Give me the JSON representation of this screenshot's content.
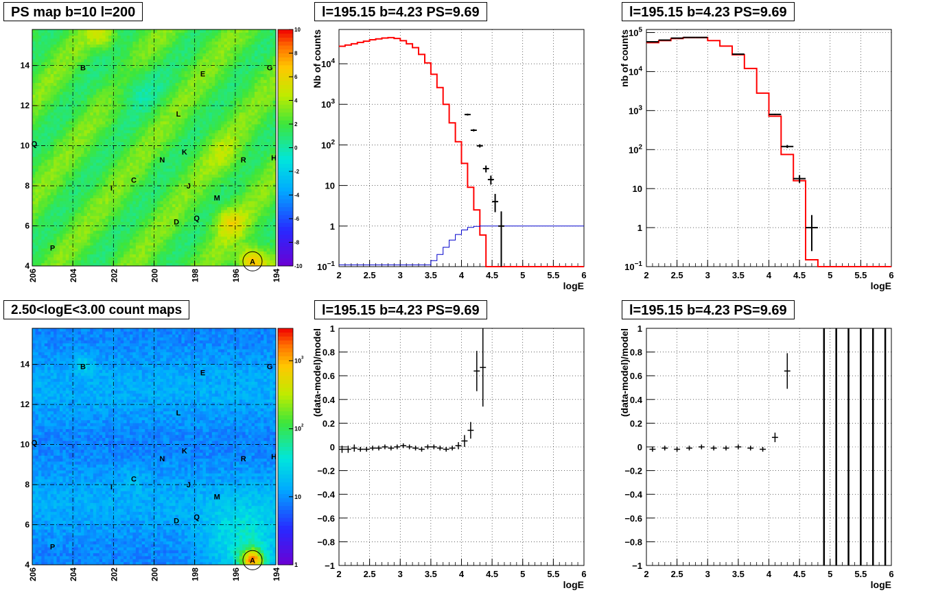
{
  "panel_titles": {
    "ps_map": "PS map b=10 l=200",
    "spec_lin": "l=195.15 b=4.23 PS=9.69",
    "spec_log": "l=195.15 b=4.23 PS=9.69",
    "count_map": "2.50<logE<3.00 count maps",
    "resid_lin": "l=195.15 b=4.23 PS=9.69",
    "resid_log": "l=195.15 b=4.23 PS=9.69"
  },
  "colors": {
    "model": "#ff0000",
    "data": "#000000",
    "acceptance": "#0000cc",
    "grid": "#000000"
  },
  "chart_data": [
    {
      "type": "heatmap",
      "id": "ps_map",
      "title": "PS map b=10 l=200",
      "xlim": [
        206,
        194
      ],
      "ylim": [
        4,
        15.8
      ],
      "x_ticks": [
        "206",
        "204",
        "202",
        "200",
        "198",
        "196",
        "194"
      ],
      "y_ticks": [
        "4",
        "6",
        "8",
        "10",
        "12",
        "14"
      ],
      "colorbar": {
        "min": -10,
        "max": 10,
        "ticks": [
          "-10",
          "-8",
          "-6",
          "-4",
          "-2",
          "0",
          "2",
          "4",
          "6",
          "8",
          "10"
        ]
      },
      "grid": true,
      "sources": [
        {
          "label": "A",
          "l": 195.15,
          "b": 4.23,
          "circled": true
        },
        {
          "label": "B",
          "l": 203.5,
          "b": 13.9
        },
        {
          "label": "C",
          "l": 201.0,
          "b": 8.3
        },
        {
          "label": "D",
          "l": 198.9,
          "b": 6.2
        },
        {
          "label": "E",
          "l": 197.6,
          "b": 13.6
        },
        {
          "label": "G",
          "l": 194.3,
          "b": 13.9
        },
        {
          "label": "H",
          "l": 194.1,
          "b": 9.4
        },
        {
          "label": "I",
          "l": 202.1,
          "b": 7.9
        },
        {
          "label": "J",
          "l": 198.3,
          "b": 8.0
        },
        {
          "label": "K",
          "l": 198.5,
          "b": 9.7
        },
        {
          "label": "L",
          "l": 198.8,
          "b": 11.6
        },
        {
          "label": "M",
          "l": 196.9,
          "b": 7.4
        },
        {
          "label": "N",
          "l": 199.6,
          "b": 9.3
        },
        {
          "label": "P",
          "l": 205.0,
          "b": 4.9
        },
        {
          "label": "Q",
          "l": 205.9,
          "b": 10.1
        },
        {
          "label": "Q",
          "l": 197.9,
          "b": 6.4
        },
        {
          "label": "R",
          "l": 195.6,
          "b": 9.3
        }
      ]
    },
    {
      "type": "line",
      "id": "spec_lin",
      "title": "l=195.15 b=4.23 PS=9.69",
      "xlabel": "logE",
      "ylabel": "Nb of counts",
      "xlim": [
        2,
        6
      ],
      "ylim": [
        0.1,
        70000
      ],
      "yscale": "log",
      "x_ticks": [
        "2",
        "2.5",
        "3",
        "3.5",
        "4",
        "4.5",
        "5",
        "5.5",
        "6"
      ],
      "y_ticks": [
        {
          "v": 0.1,
          "label": "10",
          "sup": "−1"
        },
        {
          "v": 1,
          "label": "1"
        },
        {
          "v": 10,
          "label": "10"
        },
        {
          "v": 100,
          "label": "10",
          "sup": "2"
        },
        {
          "v": 1000,
          "label": "10",
          "sup": "3"
        },
        {
          "v": 10000,
          "label": "10",
          "sup": "4"
        }
      ],
      "grid": true,
      "bin_edges": [
        2.0,
        2.1,
        2.2,
        2.3,
        2.4,
        2.5,
        2.6,
        2.7,
        2.8,
        2.9,
        3.0,
        3.1,
        3.2,
        3.3,
        3.4,
        3.5,
        3.6,
        3.7,
        3.8,
        3.9,
        4.0,
        4.1,
        4.2,
        4.3,
        4.4,
        4.5,
        4.6,
        4.7,
        4.8,
        4.9,
        5.0,
        5.1,
        5.2,
        5.3,
        5.4,
        5.5,
        5.6,
        5.7,
        5.8,
        5.9,
        6.0
      ],
      "series": [
        {
          "role": "model",
          "style": "step",
          "values": [
            27000,
            29000,
            31000,
            33500,
            36000,
            39000,
            41000,
            43000,
            44000,
            42000,
            37000,
            31000,
            25000,
            17000,
            10500,
            5500,
            2600,
            1000,
            350,
            120,
            35,
            9,
            2.5,
            0.6,
            0.1,
            0.1,
            0.1,
            0.1,
            0.1,
            0.1,
            0.1,
            0.1,
            0.1,
            0.1,
            0.1,
            0.1,
            0.1,
            0.1,
            0.1,
            0.1
          ]
        },
        {
          "role": "acceptance",
          "style": "step",
          "values": [
            0.11,
            0.11,
            0.11,
            0.11,
            0.11,
            0.11,
            0.11,
            0.11,
            0.11,
            0.11,
            0.11,
            0.11,
            0.11,
            0.11,
            0.11,
            0.14,
            0.2,
            0.3,
            0.45,
            0.62,
            0.8,
            0.93,
            0.98,
            1.0,
            1.0,
            1.0,
            1.0,
            1.0,
            1.0,
            1.0,
            1.0,
            1.0,
            1.0,
            1.0,
            1.0,
            1.0,
            1.0,
            1.0,
            1.0,
            1.0
          ]
        },
        {
          "role": "data",
          "style": "errorbar",
          "points": [
            {
              "x": 4.1,
              "y": 560,
              "xerr": 0.05,
              "ylo": 530,
              "yhi": 590
            },
            {
              "x": 4.2,
              "y": 230,
              "xerr": 0.05,
              "ylo": 215,
              "yhi": 245
            },
            {
              "x": 4.3,
              "y": 95,
              "xerr": 0.05,
              "ylo": 86,
              "yhi": 104
            },
            {
              "x": 4.4,
              "y": 26,
              "xerr": 0.05,
              "ylo": 21,
              "yhi": 31
            },
            {
              "x": 4.48,
              "y": 14,
              "xerr": 0.05,
              "ylo": 10.5,
              "yhi": 17.5
            },
            {
              "x": 4.55,
              "y": 4,
              "xerr": 0.05,
              "ylo": 2.2,
              "yhi": 6.2
            },
            {
              "x": 4.65,
              "y": 1,
              "xerr": 0.05,
              "ylo": 0.1,
              "yhi": 2.3
            }
          ]
        }
      ]
    },
    {
      "type": "line",
      "id": "spec_log",
      "title": "l=195.15 b=4.23 PS=9.69",
      "xlabel": "logE",
      "ylabel": "nb of counts",
      "xlim": [
        2,
        6
      ],
      "ylim": [
        0.1,
        120000
      ],
      "yscale": "log",
      "x_ticks": [
        "2",
        "2.5",
        "3",
        "3.5",
        "4",
        "4.5",
        "5",
        "5.5",
        "6"
      ],
      "y_ticks": [
        {
          "v": 0.1,
          "label": "10",
          "sup": "−1"
        },
        {
          "v": 1,
          "label": "1"
        },
        {
          "v": 10,
          "label": "10"
        },
        {
          "v": 100,
          "label": "10",
          "sup": "2"
        },
        {
          "v": 1000,
          "label": "10",
          "sup": "3"
        },
        {
          "v": 10000,
          "label": "10",
          "sup": "4"
        },
        {
          "v": 100000,
          "label": "10",
          "sup": "5"
        }
      ],
      "grid": true,
      "bin_edges": [
        2.0,
        2.2,
        2.4,
        2.6,
        2.8,
        3.0,
        3.2,
        3.4,
        3.6,
        3.8,
        4.0,
        4.2,
        4.4,
        4.6,
        4.8,
        5.0,
        5.2,
        5.4,
        5.6,
        5.8,
        6.0
      ],
      "series": [
        {
          "role": "model",
          "style": "step",
          "values": [
            55000,
            62000,
            70000,
            74000,
            74000,
            62000,
            45000,
            27000,
            12000,
            2800,
            720,
            75,
            16,
            0.15,
            0.1,
            0.1,
            0.1,
            0.1,
            0.1,
            0.1
          ]
        },
        {
          "role": "data",
          "style": "errorbar",
          "points": [
            {
              "x": 2.1,
              "y": 58000,
              "xerr": 0.1,
              "ylo": 56000,
              "yhi": 60000
            },
            {
              "x": 2.3,
              "y": 64000,
              "xerr": 0.1,
              "ylo": 62000,
              "yhi": 66000
            },
            {
              "x": 2.5,
              "y": 72000,
              "xerr": 0.1,
              "ylo": 70000,
              "yhi": 74000
            },
            {
              "x": 2.7,
              "y": 75000,
              "xerr": 0.1,
              "ylo": 73000,
              "yhi": 77000
            },
            {
              "x": 2.9,
              "y": 75000,
              "xerr": 0.1,
              "ylo": 73000,
              "yhi": 77000
            },
            {
              "x": 3.5,
              "y": 28000,
              "xerr": 0.1,
              "ylo": 27000,
              "yhi": 29000
            },
            {
              "x": 4.1,
              "y": 800,
              "xerr": 0.1,
              "ylo": 770,
              "yhi": 830
            },
            {
              "x": 4.3,
              "y": 120,
              "xerr": 0.1,
              "ylo": 110,
              "yhi": 131
            },
            {
              "x": 4.5,
              "y": 18,
              "xerr": 0.1,
              "ylo": 14,
              "yhi": 22
            },
            {
              "x": 4.7,
              "y": 1,
              "xerr": 0.1,
              "ylo": 0.25,
              "yhi": 2.1
            }
          ]
        }
      ]
    },
    {
      "type": "heatmap",
      "id": "count_map",
      "title": "2.50<logE<3.00 count maps",
      "xlim": [
        206,
        194
      ],
      "ylim": [
        4,
        15.8
      ],
      "x_ticks": [
        "206",
        "204",
        "202",
        "200",
        "198",
        "196",
        "194"
      ],
      "y_ticks": [
        "4",
        "6",
        "8",
        "10",
        "12",
        "14"
      ],
      "colorbar": {
        "scale": "log",
        "min": 1,
        "max": 3000,
        "ticks": [
          {
            "v": 1,
            "label": "1"
          },
          {
            "v": 10,
            "label": "10"
          },
          {
            "v": 100,
            "label": "10",
            "sup": "2"
          },
          {
            "v": 1000,
            "label": "10",
            "sup": "3"
          }
        ]
      },
      "grid": true,
      "sources": [
        {
          "label": "A",
          "l": 195.15,
          "b": 4.23,
          "circled": true
        },
        {
          "label": "B",
          "l": 203.5,
          "b": 13.9
        },
        {
          "label": "C",
          "l": 201.0,
          "b": 8.3
        },
        {
          "label": "D",
          "l": 198.9,
          "b": 6.2
        },
        {
          "label": "E",
          "l": 197.6,
          "b": 13.6
        },
        {
          "label": "G",
          "l": 194.3,
          "b": 13.9
        },
        {
          "label": "H",
          "l": 194.1,
          "b": 9.4
        },
        {
          "label": "I",
          "l": 202.1,
          "b": 7.9
        },
        {
          "label": "J",
          "l": 198.3,
          "b": 8.0
        },
        {
          "label": "K",
          "l": 198.5,
          "b": 9.7
        },
        {
          "label": "L",
          "l": 198.8,
          "b": 11.6
        },
        {
          "label": "M",
          "l": 196.9,
          "b": 7.4
        },
        {
          "label": "N",
          "l": 199.6,
          "b": 9.3
        },
        {
          "label": "P",
          "l": 205.0,
          "b": 4.9
        },
        {
          "label": "Q",
          "l": 205.9,
          "b": 10.1
        },
        {
          "label": "Q",
          "l": 197.9,
          "b": 6.4
        },
        {
          "label": "R",
          "l": 195.6,
          "b": 9.3
        }
      ]
    },
    {
      "type": "scatter",
      "id": "resid_lin",
      "title": "l=195.15 b=4.23 PS=9.69",
      "xlabel": "logE",
      "ylabel": "(data-model)/model",
      "xlim": [
        2,
        6
      ],
      "ylim": [
        -1,
        1
      ],
      "x_ticks": [
        "2",
        "2.5",
        "3",
        "3.5",
        "4",
        "4.5",
        "5",
        "5.5",
        "6"
      ],
      "y_ticks": [
        "−1",
        "−0.8",
        "−0.6",
        "−0.4",
        "−0.2",
        "0",
        "0.2",
        "0.4",
        "0.6",
        "0.8",
        "1"
      ],
      "grid": true,
      "points": [
        {
          "x": 2.05,
          "y": -0.02,
          "yerr": 0.03
        },
        {
          "x": 2.15,
          "y": -0.02,
          "yerr": 0.03
        },
        {
          "x": 2.25,
          "y": -0.01,
          "yerr": 0.03
        },
        {
          "x": 2.35,
          "y": -0.02,
          "yerr": 0.02
        },
        {
          "x": 2.45,
          "y": -0.02,
          "yerr": 0.02
        },
        {
          "x": 2.55,
          "y": -0.01,
          "yerr": 0.02
        },
        {
          "x": 2.65,
          "y": -0.01,
          "yerr": 0.02
        },
        {
          "x": 2.75,
          "y": 0.0,
          "yerr": 0.02
        },
        {
          "x": 2.85,
          "y": -0.01,
          "yerr": 0.02
        },
        {
          "x": 2.95,
          "y": 0.0,
          "yerr": 0.02
        },
        {
          "x": 3.05,
          "y": 0.01,
          "yerr": 0.02
        },
        {
          "x": 3.15,
          "y": 0.0,
          "yerr": 0.02
        },
        {
          "x": 3.25,
          "y": -0.01,
          "yerr": 0.02
        },
        {
          "x": 3.35,
          "y": -0.02,
          "yerr": 0.02
        },
        {
          "x": 3.45,
          "y": 0.0,
          "yerr": 0.02
        },
        {
          "x": 3.55,
          "y": 0.0,
          "yerr": 0.02
        },
        {
          "x": 3.65,
          "y": -0.01,
          "yerr": 0.02
        },
        {
          "x": 3.75,
          "y": -0.02,
          "yerr": 0.02
        },
        {
          "x": 3.85,
          "y": -0.01,
          "yerr": 0.02
        },
        {
          "x": 3.95,
          "y": 0.01,
          "yerr": 0.03
        },
        {
          "x": 4.05,
          "y": 0.05,
          "yerr": 0.05
        },
        {
          "x": 4.15,
          "y": 0.14,
          "yerr": 0.07
        },
        {
          "x": 4.25,
          "y": 0.64,
          "yerr": 0.17
        },
        {
          "x": 4.35,
          "y": 0.67,
          "yerr": 0.33
        }
      ]
    },
    {
      "type": "scatter",
      "id": "resid_log",
      "title": "l=195.15 b=4.23 PS=9.69",
      "xlabel": "logE",
      "ylabel": "(data-model)/model",
      "xlim": [
        2,
        6
      ],
      "ylim": [
        -1,
        1
      ],
      "x_ticks": [
        "2",
        "2.5",
        "3",
        "3.5",
        "4",
        "4.5",
        "5",
        "5.5",
        "6"
      ],
      "y_ticks": [
        "−1",
        "−0.8",
        "−0.6",
        "−0.4",
        "−0.2",
        "0",
        "0.2",
        "0.4",
        "0.6",
        "0.8",
        "1"
      ],
      "grid": true,
      "points": [
        {
          "x": 2.1,
          "y": -0.02,
          "yerr": 0.02
        },
        {
          "x": 2.3,
          "y": -0.01,
          "yerr": 0.02
        },
        {
          "x": 2.5,
          "y": -0.02,
          "yerr": 0.02
        },
        {
          "x": 2.7,
          "y": -0.01,
          "yerr": 0.02
        },
        {
          "x": 2.9,
          "y": 0.0,
          "yerr": 0.02
        },
        {
          "x": 3.1,
          "y": -0.01,
          "yerr": 0.02
        },
        {
          "x": 3.3,
          "y": -0.01,
          "yerr": 0.02
        },
        {
          "x": 3.5,
          "y": 0.0,
          "yerr": 0.02
        },
        {
          "x": 3.7,
          "y": -0.01,
          "yerr": 0.02
        },
        {
          "x": 3.9,
          "y": -0.02,
          "yerr": 0.02
        },
        {
          "x": 4.1,
          "y": 0.08,
          "yerr": 0.04
        },
        {
          "x": 4.3,
          "y": 0.64,
          "yerr": 0.15
        },
        {
          "x": 4.9,
          "y": 0.0,
          "yerr": 1.0,
          "xerr": 0.0
        },
        {
          "x": 5.1,
          "y": 0.0,
          "yerr": 1.0,
          "xerr": 0.0
        },
        {
          "x": 5.3,
          "y": 0.0,
          "yerr": 1.0,
          "xerr": 0.0
        },
        {
          "x": 5.5,
          "y": 0.0,
          "yerr": 1.0,
          "xerr": 0.0
        },
        {
          "x": 5.7,
          "y": 0.0,
          "yerr": 1.0,
          "xerr": 0.0
        },
        {
          "x": 5.9,
          "y": 0.0,
          "yerr": 1.0,
          "xerr": 0.0
        }
      ]
    }
  ]
}
